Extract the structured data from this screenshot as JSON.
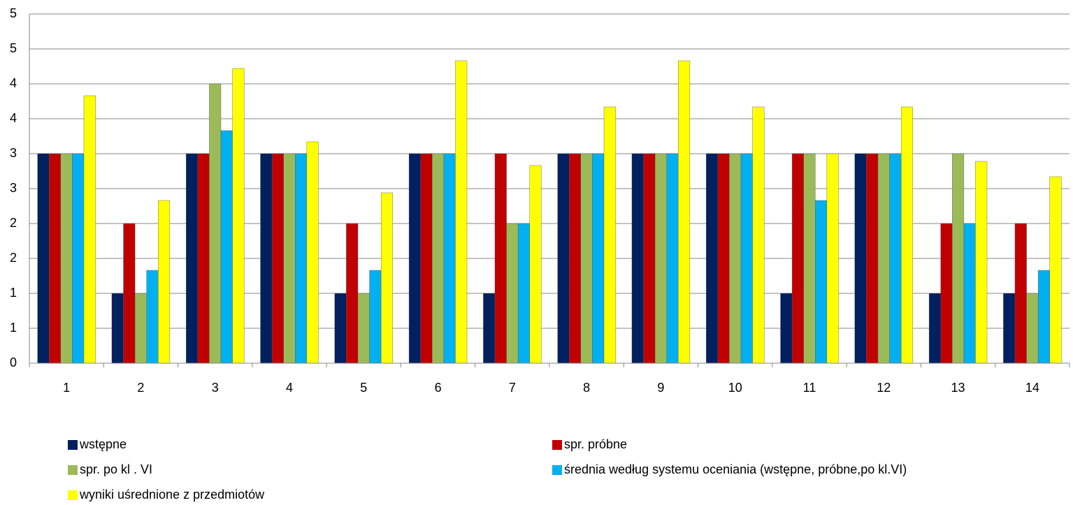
{
  "chart_data": {
    "type": "bar",
    "categories": [
      "1",
      "2",
      "3",
      "4",
      "5",
      "6",
      "7",
      "8",
      "9",
      "10",
      "11",
      "12",
      "13",
      "14"
    ],
    "series": [
      {
        "name": "wstępne",
        "color": "#002060",
        "values": [
          3,
          1,
          3,
          3,
          1,
          3,
          1,
          3,
          3,
          3,
          1,
          3,
          1,
          1
        ]
      },
      {
        "name": "spr. próbne",
        "color": "#c00000",
        "values": [
          3,
          2,
          3,
          3,
          2,
          3,
          3,
          3,
          3,
          3,
          3,
          3,
          2,
          2
        ]
      },
      {
        "name": "spr. po kl . VI",
        "color": "#9bbb59",
        "values": [
          3,
          1,
          4,
          3,
          1,
          3,
          2,
          3,
          3,
          3,
          3,
          3,
          3,
          1
        ]
      },
      {
        "name": "średnia według systemu oceniania (wstępne, próbne,po kl.VI)",
        "color": "#00b0f0",
        "values": [
          3,
          1.33,
          3.33,
          3,
          1.33,
          3,
          2,
          3,
          3,
          3,
          2.33,
          3,
          2,
          1.33
        ]
      },
      {
        "name": "wyniki uśrednione z przedmiotów",
        "color": "#ffff00",
        "values": [
          3.83,
          2.33,
          4.22,
          3.17,
          2.44,
          4.33,
          2.83,
          3.67,
          4.33,
          3.67,
          3,
          3.67,
          2.89,
          2.67
        ]
      }
    ],
    "ylim": [
      0,
      5
    ],
    "yticks": [
      0,
      {
        "value": 0.5,
        "label": "1"
      },
      1,
      {
        "value": 1.5,
        "label": "2"
      },
      2,
      {
        "value": 2.5,
        "label": "3"
      },
      3,
      {
        "value": 3.5,
        "label": "4"
      },
      4,
      {
        "value": 4.5,
        "label": "5"
      },
      5
    ],
    "grid": true,
    "legend": "bottom"
  }
}
